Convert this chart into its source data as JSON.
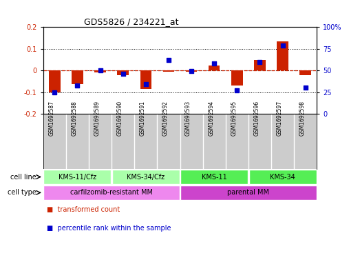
{
  "title": "GDS5826 / 234221_at",
  "samples": [
    "GSM1692587",
    "GSM1692588",
    "GSM1692589",
    "GSM1692590",
    "GSM1692591",
    "GSM1692592",
    "GSM1692593",
    "GSM1692594",
    "GSM1692595",
    "GSM1692596",
    "GSM1692597",
    "GSM1692598"
  ],
  "transformed_count": [
    -0.102,
    -0.063,
    -0.008,
    -0.022,
    -0.085,
    -0.007,
    -0.005,
    0.022,
    -0.068,
    0.048,
    0.135,
    -0.022
  ],
  "percentile_rank_raw": [
    25,
    33,
    50,
    46,
    34,
    62,
    49,
    58,
    27,
    60,
    79,
    30
  ],
  "ylim_left": [
    -0.2,
    0.2
  ],
  "ylim_right": [
    0,
    100
  ],
  "yticks_left": [
    -0.2,
    -0.1,
    0.0,
    0.1,
    0.2
  ],
  "yticks_right": [
    0,
    25,
    50,
    75,
    100
  ],
  "bar_color": "#cc2200",
  "dot_color": "#0000cc",
  "zero_line_color": "#cc2200",
  "grid_color": "#000000",
  "cell_line_groups": [
    {
      "label": "KMS-11/Cfz",
      "start": 0,
      "end": 3,
      "color": "#aaffaa"
    },
    {
      "label": "KMS-34/Cfz",
      "start": 3,
      "end": 6,
      "color": "#aaffaa"
    },
    {
      "label": "KMS-11",
      "start": 6,
      "end": 9,
      "color": "#55ee55"
    },
    {
      "label": "KMS-34",
      "start": 9,
      "end": 12,
      "color": "#55ee55"
    }
  ],
  "cell_type_groups": [
    {
      "label": "carfilzomib-resistant MM",
      "start": 0,
      "end": 6,
      "color": "#ee88ee"
    },
    {
      "label": "parental MM",
      "start": 6,
      "end": 12,
      "color": "#cc44cc"
    }
  ],
  "sample_bg_color": "#cccccc",
  "plot_bg": "#ffffff",
  "legend_items": [
    {
      "label": "transformed count",
      "color": "#cc2200"
    },
    {
      "label": "percentile rank within the sample",
      "color": "#0000cc"
    }
  ]
}
